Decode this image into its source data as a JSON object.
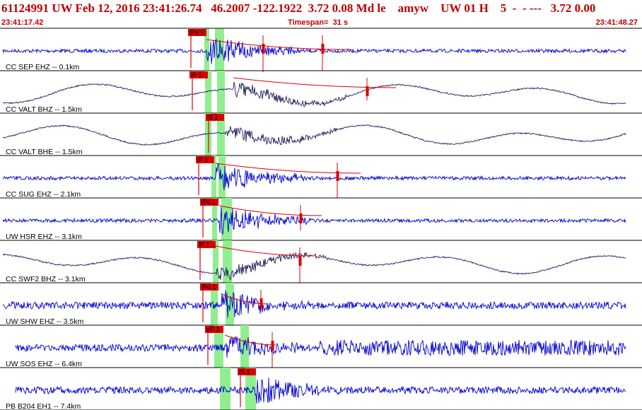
{
  "header": {
    "title": "61124991 UW Feb 12, 2016 23:41:26.74   46.2007 -122.1922  3.72 0.08 Md le    amyw    UW 01 H    5  -  - ---   3.72 0.00",
    "start_time": "23:41:17.42",
    "timespan": "Timespan=  31 s",
    "end_time": "23:41:48.27"
  },
  "colors": {
    "header_text": "#c00000",
    "highfreq_trace": "#0000d0",
    "broadband_trace": "#202060",
    "pick": "#dd0000",
    "pick_window": "#90ee90",
    "separator": "#000000"
  },
  "traces": [
    {
      "label": "CC SEP EHZ -- 0.1km",
      "pick": "iPd 1",
      "color": "blue",
      "style": "hf"
    },
    {
      "label": "CC VALT BHZ -- 1.5km",
      "pick": "iP 1",
      "color": "dark",
      "style": "bb"
    },
    {
      "label": "CC VALT BHE -- 1.5km",
      "pick": "iS 1",
      "color": "dark",
      "style": "bb"
    },
    {
      "label": "CC SUG EHZ -- 2.1km",
      "pick": "iP 1",
      "color": "blue",
      "style": "hf"
    },
    {
      "label": "UW HSR EHZ -- 3.1km",
      "pick": "iPc 1",
      "color": "blue",
      "style": "hf"
    },
    {
      "label": "CC SWF2 BHZ -- 3.1km",
      "pick": "iP 1",
      "color": "dark",
      "style": "bb"
    },
    {
      "label": "UW SHW EHZ -- 3.5km",
      "pick": "iPd 1",
      "color": "blue",
      "style": "hf"
    },
    {
      "label": "UW SOS EHZ -- 6.4km",
      "pick": "eP 2",
      "color": "blue",
      "style": "hf"
    },
    {
      "label": "PB B204 EH1 -- 7.4km",
      "pick": "iS 1",
      "color": "blue",
      "style": "hf"
    }
  ]
}
